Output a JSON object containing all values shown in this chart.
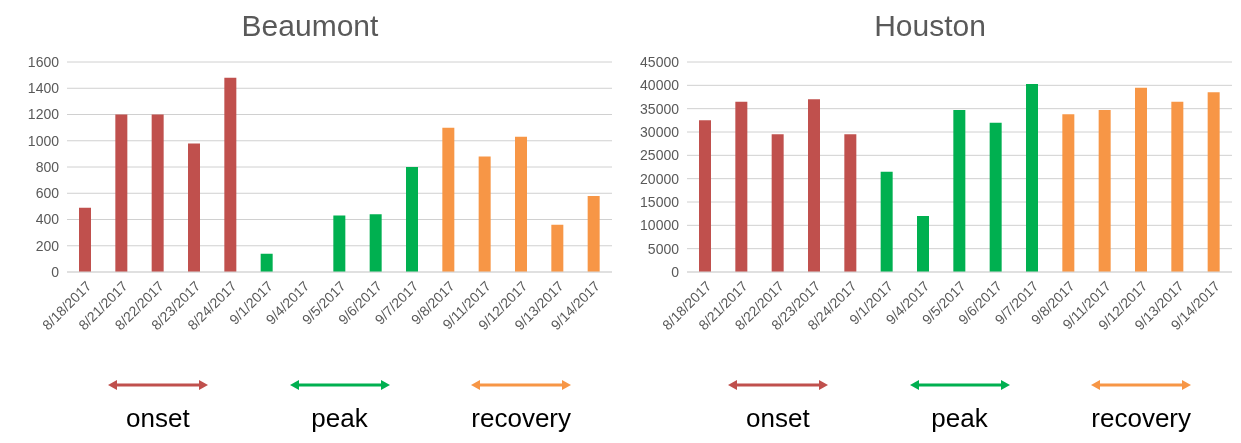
{
  "chart_data": [
    {
      "type": "bar",
      "title": "Beaumont",
      "categories": [
        "8/18/2017",
        "8/21/2017",
        "8/22/2017",
        "8/23/2017",
        "8/24/2017",
        "9/1/2017",
        "9/4/2017",
        "9/5/2017",
        "9/6/2017",
        "9/7/2017",
        "9/8/2017",
        "9/11/2017",
        "9/12/2017",
        "9/13/2017",
        "9/14/2017"
      ],
      "values": [
        490,
        1200,
        1200,
        980,
        1480,
        140,
        0,
        430,
        440,
        800,
        1100,
        880,
        1030,
        360,
        580
      ],
      "colors": [
        "#c0504d",
        "#c0504d",
        "#c0504d",
        "#c0504d",
        "#c0504d",
        "#00b050",
        "#00b050",
        "#00b050",
        "#00b050",
        "#00b050",
        "#f79646",
        "#f79646",
        "#f79646",
        "#f79646",
        "#f79646"
      ],
      "ylim": [
        0,
        1600
      ],
      "yticks": [
        0,
        200,
        400,
        600,
        800,
        1000,
        1200,
        1400,
        1600
      ],
      "grid": "y",
      "legend": false,
      "annotations": [
        "onset",
        "peak",
        "recovery"
      ]
    },
    {
      "type": "bar",
      "title": "Houston",
      "categories": [
        "8/18/2017",
        "8/21/2017",
        "8/22/2017",
        "8/23/2017",
        "8/24/2017",
        "9/1/2017",
        "9/4/2017",
        "9/5/2017",
        "9/6/2017",
        "9/7/2017",
        "9/8/2017",
        "9/11/2017",
        "9/12/2017",
        "9/13/2017",
        "9/14/2017"
      ],
      "values": [
        32500,
        36500,
        29500,
        37000,
        29500,
        21500,
        12000,
        34700,
        32000,
        40300,
        33800,
        34700,
        39500,
        36500,
        38500
      ],
      "colors": [
        "#c0504d",
        "#c0504d",
        "#c0504d",
        "#c0504d",
        "#c0504d",
        "#00b050",
        "#00b050",
        "#00b050",
        "#00b050",
        "#00b050",
        "#f79646",
        "#f79646",
        "#f79646",
        "#f79646",
        "#f79646"
      ],
      "ylim": [
        0,
        45000
      ],
      "yticks": [
        0,
        5000,
        10000,
        15000,
        20000,
        25000,
        30000,
        35000,
        40000,
        45000
      ],
      "grid": "y",
      "legend": false,
      "annotations": [
        "onset",
        "peak",
        "recovery"
      ]
    }
  ]
}
